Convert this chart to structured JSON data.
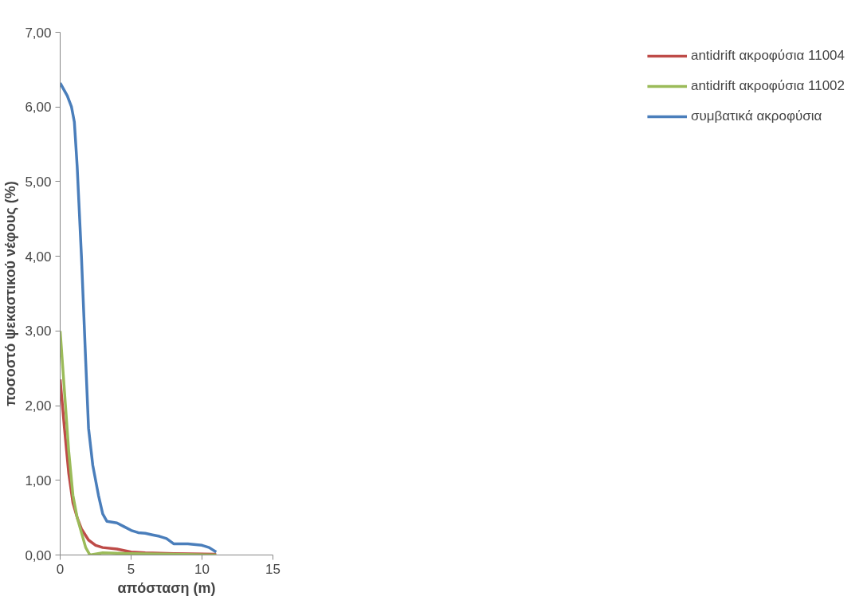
{
  "chart_data": {
    "type": "line",
    "xlabel": "απόσταση (m)",
    "ylabel": "ποσοστό ψεκαστικού νέφους (%)",
    "xlim": [
      0,
      15
    ],
    "xticks": [
      0,
      5,
      10,
      15
    ],
    "ylim": [
      0,
      7
    ],
    "yticks": [
      {
        "value": 0,
        "label": "0,00"
      },
      {
        "value": 1,
        "label": "1,00"
      },
      {
        "value": 2,
        "label": "2,00"
      },
      {
        "value": 3,
        "label": "3,00"
      },
      {
        "value": 4,
        "label": "4,00"
      },
      {
        "value": 5,
        "label": "5,00"
      },
      {
        "value": 6,
        "label": "6,00"
      },
      {
        "value": 7,
        "label": "7,00"
      }
    ],
    "grid": false,
    "legend": "right",
    "marker": "none",
    "line_style": "solid",
    "series": [
      {
        "name": "antidrift ακροφύσια 11004",
        "color": "#be4b48",
        "x": [
          0,
          0.3,
          0.6,
          0.9,
          1.2,
          1.5,
          2,
          2.5,
          3,
          4,
          5,
          6,
          8,
          11
        ],
        "values": [
          2.35,
          1.7,
          1.1,
          0.7,
          0.5,
          0.35,
          0.2,
          0.13,
          0.1,
          0.08,
          0.04,
          0.03,
          0.02,
          0.01
        ]
      },
      {
        "name": "antidrift ακροφύσια 11002",
        "color": "#9bbb59",
        "x": [
          0,
          0.3,
          0.6,
          0.9,
          1.2,
          1.5,
          1.8,
          2.1,
          3,
          5,
          8,
          11
        ],
        "values": [
          3.0,
          2.2,
          1.4,
          0.8,
          0.5,
          0.3,
          0.1,
          0.0,
          0.03,
          0.02,
          0.01,
          0.0
        ]
      },
      {
        "name": "συμβατικά ακροφύσια",
        "color": "#4a7ebb",
        "x": [
          0,
          0.5,
          0.8,
          1.0,
          1.2,
          1.5,
          1.8,
          2.0,
          2.3,
          2.7,
          3.0,
          3.3,
          4,
          4.5,
          5,
          5.5,
          6,
          6.5,
          7,
          7.5,
          8,
          9,
          10,
          10.5,
          11
        ],
        "values": [
          6.32,
          6.15,
          6.0,
          5.8,
          5.2,
          4.0,
          2.6,
          1.7,
          1.2,
          0.8,
          0.55,
          0.45,
          0.43,
          0.38,
          0.33,
          0.3,
          0.29,
          0.27,
          0.25,
          0.22,
          0.15,
          0.15,
          0.13,
          0.1,
          0.04
        ]
      }
    ]
  }
}
